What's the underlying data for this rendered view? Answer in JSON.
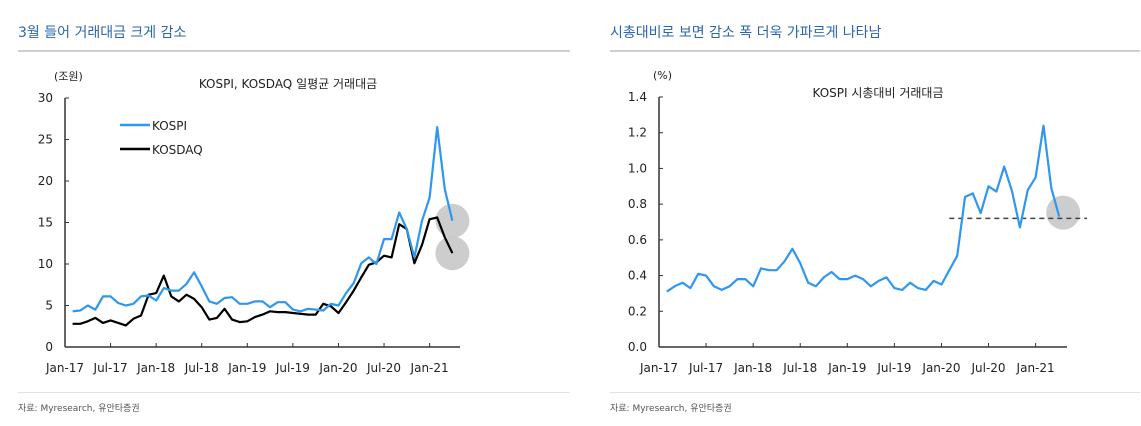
{
  "panels": [
    {
      "title": "3월 들어 거래대금 크게 감소",
      "source": "자료: Myresearch, 유안타증권"
    },
    {
      "title": "시총대비로 보면 감소 폭 더욱 가파르게 나타남",
      "source": "자료: Myresearch, 유안타증권"
    }
  ],
  "colors": {
    "kospi": "#2f97ee",
    "kosdaq": "#000000",
    "highlight": "#c8c8c8",
    "dashed": "#444444",
    "title": "#2a66b0"
  },
  "chart_data": [
    {
      "type": "line",
      "title": "KOSPI, KOSDAQ 일평균 거래대금",
      "unit_label": "(조원)",
      "ylim": [
        0,
        30
      ],
      "yticks": [
        0,
        5,
        10,
        15,
        20,
        25,
        30
      ],
      "xtick_labels": [
        "Jan-17",
        "Jul-17",
        "Jan-18",
        "Jul-18",
        "Jan-19",
        "Jul-19",
        "Jan-20",
        "Jul-20",
        "Jan-21"
      ],
      "x_start": "Feb-17",
      "x_end": "Apr-21",
      "legend": "top-left",
      "grid": false,
      "series": [
        {
          "name": "KOSPI",
          "values": [
            4.3,
            4.4,
            5.0,
            4.5,
            6.1,
            6.1,
            5.3,
            5.0,
            5.2,
            6.1,
            6.2,
            5.6,
            7.1,
            6.8,
            6.8,
            7.6,
            9.0,
            7.3,
            5.5,
            5.2,
            5.9,
            6.0,
            5.2,
            5.2,
            5.5,
            5.5,
            4.8,
            5.4,
            5.4,
            4.5,
            4.3,
            4.6,
            4.5,
            4.4,
            5.2,
            5.0,
            6.5,
            7.7,
            10.1,
            10.8,
            10.0,
            13.0,
            13.0,
            16.2,
            14.2,
            10.8,
            15.2,
            18.0,
            26.5,
            19.0,
            15.2
          ]
        },
        {
          "name": "KOSDAQ",
          "values": [
            2.8,
            2.8,
            3.1,
            3.5,
            2.9,
            3.2,
            2.9,
            2.6,
            3.4,
            3.8,
            6.3,
            6.5,
            8.6,
            6.1,
            5.5,
            6.3,
            5.8,
            4.8,
            3.3,
            3.5,
            4.6,
            3.3,
            3.0,
            3.1,
            3.6,
            3.9,
            4.3,
            4.2,
            4.2,
            4.1,
            4.0,
            3.9,
            3.9,
            5.2,
            4.9,
            4.1,
            5.4,
            6.8,
            8.4,
            9.9,
            10.2,
            11.0,
            10.8,
            14.8,
            14.2,
            10.1,
            12.3,
            15.4,
            15.6,
            13.2,
            11.3
          ]
        }
      ],
      "highlights": [
        {
          "series": "KOSPI",
          "month": "Apr-21"
        },
        {
          "series": "KOSDAQ",
          "month": "Apr-21"
        }
      ]
    },
    {
      "type": "line",
      "title": "KOSPI 시총대비 거래대금",
      "unit_label": "(%)",
      "ylim": [
        0,
        1.4
      ],
      "yticks": [
        0.0,
        0.2,
        0.4,
        0.6,
        0.8,
        1.0,
        1.2,
        1.4
      ],
      "xtick_labels": [
        "Jan-17",
        "Jul-17",
        "Jan-18",
        "Jul-18",
        "Jan-19",
        "Jul-19",
        "Jan-20",
        "Jul-20",
        "Jan-21"
      ],
      "x_start": "Feb-17",
      "x_end": "Apr-21",
      "grid": false,
      "series": [
        {
          "values": [
            0.31,
            0.34,
            0.36,
            0.33,
            0.41,
            0.4,
            0.34,
            0.32,
            0.34,
            0.38,
            0.38,
            0.34,
            0.44,
            0.43,
            0.43,
            0.48,
            0.55,
            0.47,
            0.36,
            0.34,
            0.39,
            0.42,
            0.38,
            0.38,
            0.4,
            0.38,
            0.34,
            0.37,
            0.39,
            0.33,
            0.32,
            0.36,
            0.33,
            0.32,
            0.37,
            0.35,
            0.43,
            0.51,
            0.84,
            0.86,
            0.75,
            0.9,
            0.87,
            1.01,
            0.87,
            0.67,
            0.88,
            0.95,
            1.24,
            0.89,
            0.73
          ]
        }
      ],
      "reference_line": {
        "value": 0.72,
        "from": "Feb-20",
        "style": "dashed"
      },
      "highlights": [
        {
          "month": "Apr-21"
        }
      ]
    }
  ]
}
